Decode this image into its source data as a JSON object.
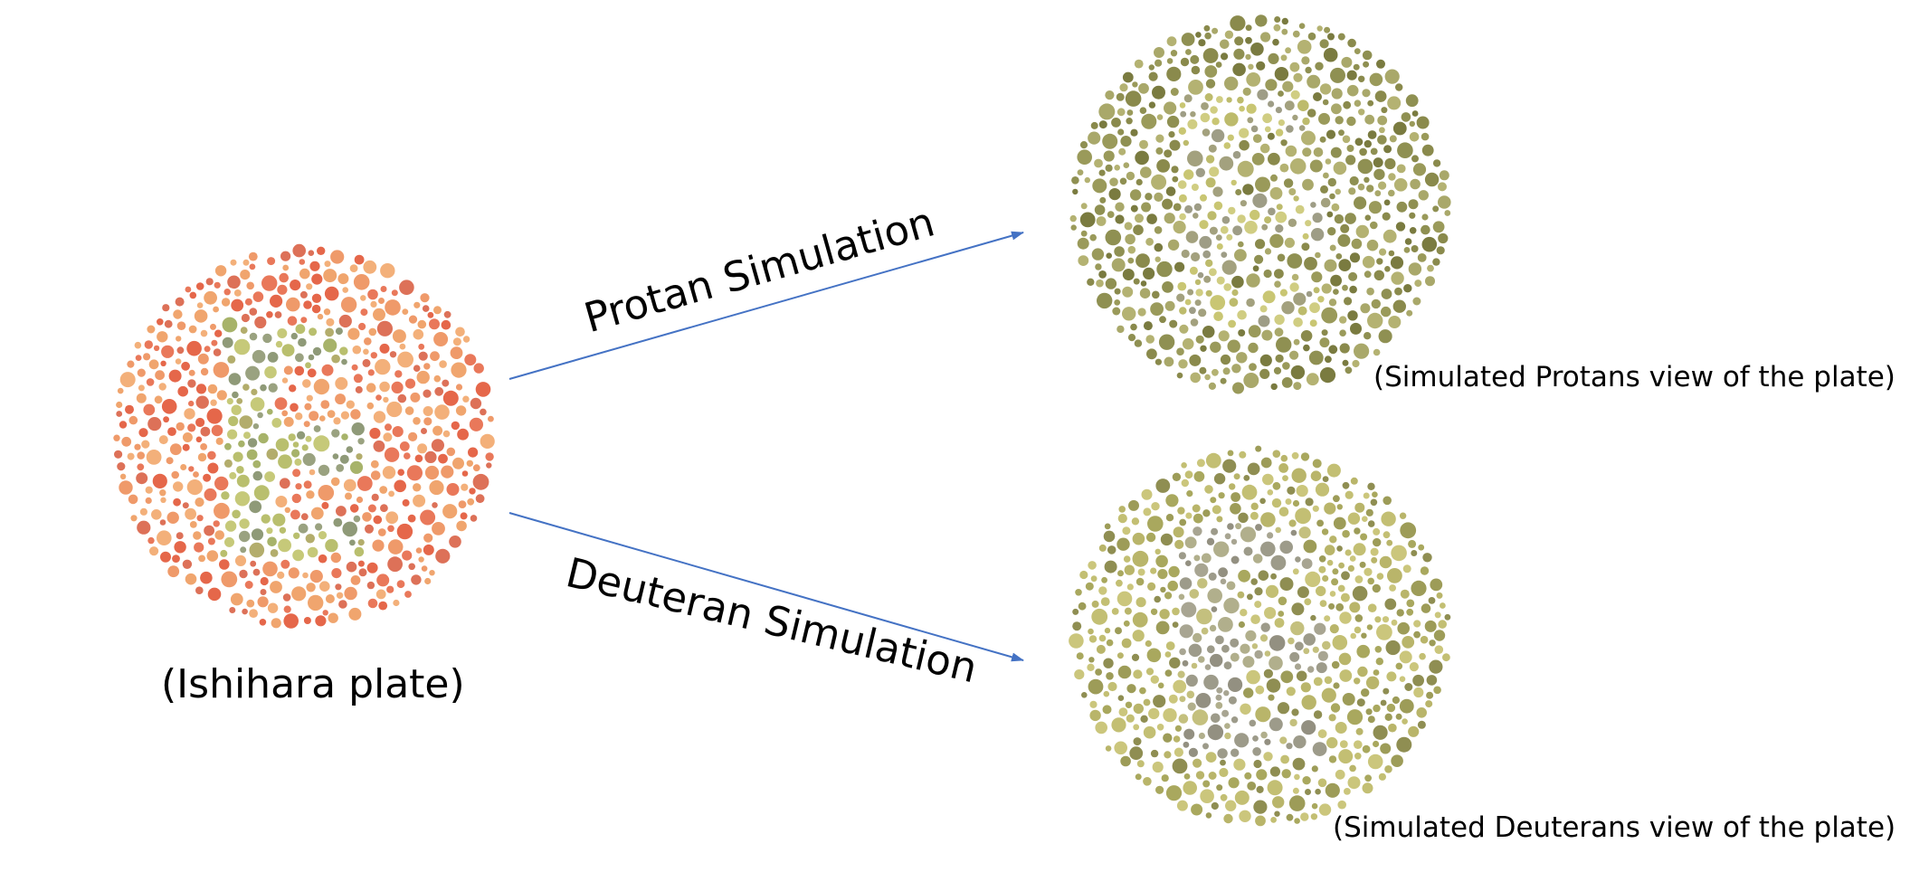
{
  "plates": {
    "original": {
      "caption": "(Ishihara plate)",
      "background_colors": [
        "#e9785a",
        "#ef9a6a",
        "#f3b07a",
        "#e5674a",
        "#f0a56e",
        "#dd7158"
      ],
      "figure_colors": [
        "#b9bf6e",
        "#a7b36a",
        "#8f9a78",
        "#c6c979",
        "#9aa280",
        "#b3ad6c"
      ]
    },
    "protan": {
      "caption": "(Simulated Protans view of the plate)",
      "background_colors": [
        "#8a8a4c",
        "#9a9a5a",
        "#a9a86a",
        "#7a7b40",
        "#b4b272",
        "#8f9052"
      ],
      "figure_colors": [
        "#c9c673",
        "#bdbb6c",
        "#a3a17e",
        "#d0cd82",
        "#9e9d86"
      ]
    },
    "deuteran": {
      "caption": "(Simulated Deuterans view of the plate)",
      "background_colors": [
        "#b9b56a",
        "#a9a85e",
        "#c3bf73",
        "#9d9c58",
        "#cbc67c",
        "#8f8e52"
      ],
      "figure_colors": [
        "#9d9b8a",
        "#a8a592",
        "#b1af8c",
        "#939081",
        "#c4c07e"
      ]
    }
  },
  "arrows": {
    "color": "#4472c4",
    "protan_label": "Protan Simulation",
    "deuteran_label": "Deuteran Simulation"
  }
}
